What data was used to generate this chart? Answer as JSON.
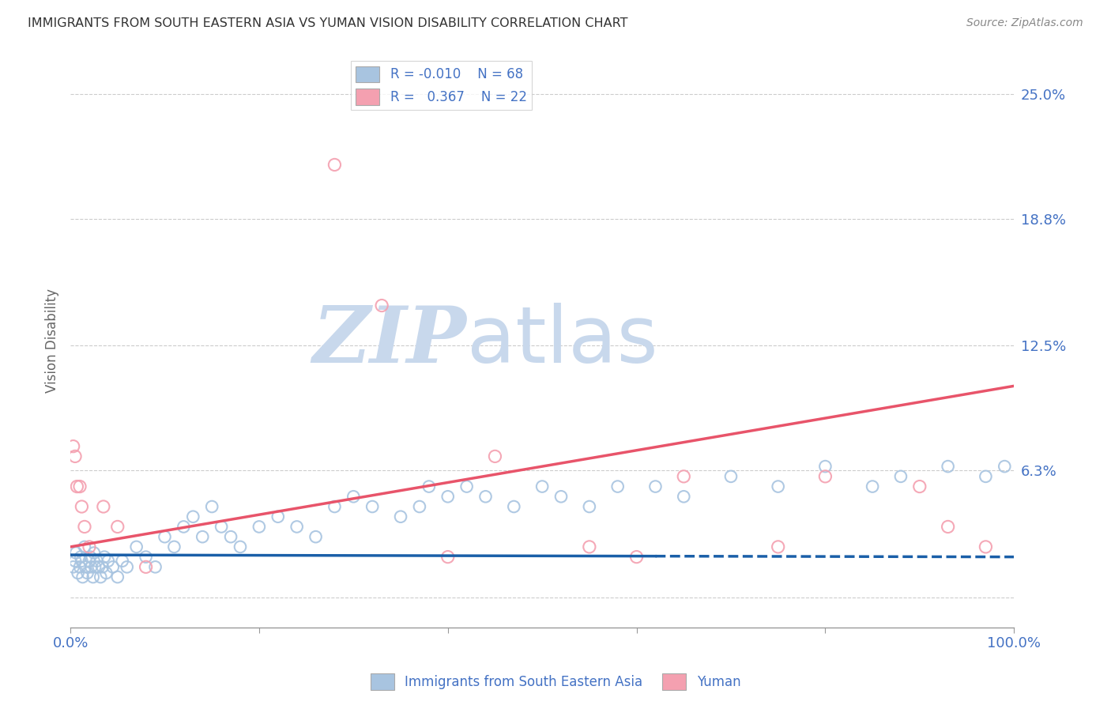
{
  "title": "IMMIGRANTS FROM SOUTH EASTERN ASIA VS YUMAN VISION DISABILITY CORRELATION CHART",
  "source": "Source: ZipAtlas.com",
  "ylabel": "Vision Disability",
  "xlim": [
    0,
    100
  ],
  "ylim": [
    -1.5,
    27
  ],
  "yticks": [
    0,
    6.3,
    12.5,
    18.8,
    25.0
  ],
  "ytick_labels": [
    "",
    "6.3%",
    "12.5%",
    "18.8%",
    "25.0%"
  ],
  "legend_r_blue": "-0.010",
  "legend_n_blue": "68",
  "legend_r_pink": "0.367",
  "legend_n_pink": "22",
  "legend_label_blue": "Immigrants from South Eastern Asia",
  "legend_label_pink": "Yuman",
  "blue_color": "#a8c4e0",
  "pink_color": "#f4a0b0",
  "blue_line_color": "#1a5fa8",
  "pink_line_color": "#e8546a",
  "blue_scatter_x": [
    0.3,
    0.5,
    0.6,
    0.8,
    1.0,
    1.1,
    1.2,
    1.3,
    1.5,
    1.6,
    1.8,
    2.0,
    2.1,
    2.2,
    2.4,
    2.5,
    2.6,
    2.8,
    3.0,
    3.2,
    3.4,
    3.6,
    3.8,
    4.0,
    4.5,
    5.0,
    5.5,
    6.0,
    7.0,
    8.0,
    9.0,
    10.0,
    11.0,
    12.0,
    13.0,
    14.0,
    15.0,
    16.0,
    17.0,
    18.0,
    20.0,
    22.0,
    24.0,
    26.0,
    28.0,
    30.0,
    32.0,
    35.0,
    37.0,
    38.0,
    40.0,
    42.0,
    44.0,
    47.0,
    50.0,
    52.0,
    55.0,
    58.0,
    62.0,
    65.0,
    70.0,
    75.0,
    80.0,
    85.0,
    88.0,
    93.0,
    97.0,
    99.0
  ],
  "blue_scatter_y": [
    1.5,
    1.8,
    2.2,
    1.2,
    1.5,
    2.0,
    1.8,
    1.0,
    2.5,
    1.5,
    1.2,
    1.8,
    2.0,
    1.5,
    1.0,
    2.2,
    1.5,
    1.8,
    1.5,
    1.0,
    1.5,
    2.0,
    1.2,
    1.8,
    1.5,
    1.0,
    1.8,
    1.5,
    2.5,
    2.0,
    1.5,
    3.0,
    2.5,
    3.5,
    4.0,
    3.0,
    4.5,
    3.5,
    3.0,
    2.5,
    3.5,
    4.0,
    3.5,
    3.0,
    4.5,
    5.0,
    4.5,
    4.0,
    4.5,
    5.5,
    5.0,
    5.5,
    5.0,
    4.5,
    5.5,
    5.0,
    4.5,
    5.5,
    5.5,
    5.0,
    6.0,
    5.5,
    6.5,
    5.5,
    6.0,
    6.5,
    6.0,
    6.5
  ],
  "pink_scatter_x": [
    0.3,
    0.5,
    0.7,
    1.0,
    1.2,
    1.5,
    2.0,
    3.5,
    5.0,
    8.0,
    28.0,
    33.0,
    40.0,
    45.0,
    55.0,
    60.0,
    65.0,
    75.0,
    80.0,
    90.0,
    93.0,
    97.0
  ],
  "pink_scatter_y": [
    7.5,
    7.0,
    5.5,
    5.5,
    4.5,
    3.5,
    2.5,
    4.5,
    3.5,
    1.5,
    21.5,
    14.5,
    2.0,
    7.0,
    2.5,
    2.0,
    6.0,
    2.5,
    6.0,
    5.5,
    3.5,
    2.5
  ],
  "blue_regr_x0": 0,
  "blue_regr_y0": 2.1,
  "blue_regr_x1": 100,
  "blue_regr_y1": 2.0,
  "blue_solid_end": 62,
  "pink_regr_x0": 0,
  "pink_regr_y0": 2.5,
  "pink_regr_x1": 100,
  "pink_regr_y1": 10.5,
  "grid_color": "#cccccc",
  "title_color": "#333333",
  "axis_label_color": "#4472c4",
  "source_color": "#888888",
  "background_color": "#ffffff",
  "watermark_zip": "ZIP",
  "watermark_atlas": "atlas",
  "watermark_color_zip": "#c8d8ec",
  "watermark_color_atlas": "#c8d8ec"
}
